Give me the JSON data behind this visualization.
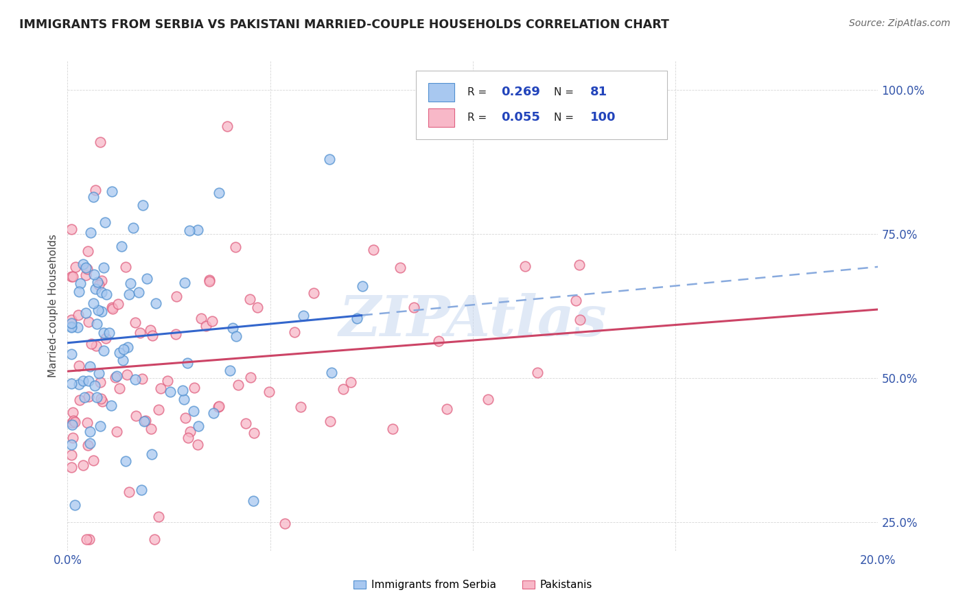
{
  "title": "IMMIGRANTS FROM SERBIA VS PAKISTANI MARRIED-COUPLE HOUSEHOLDS CORRELATION CHART",
  "source_text": "Source: ZipAtlas.com",
  "ylabel": "Married-couple Households",
  "xlabel_blue": "Immigrants from Serbia",
  "xlabel_pink": "Pakistanis",
  "xlim": [
    0.0,
    0.2
  ],
  "ylim": [
    0.2,
    1.05
  ],
  "R_blue": 0.269,
  "N_blue": 81,
  "R_pink": 0.055,
  "N_pink": 100,
  "color_blue_fill": "#A8C8F0",
  "color_blue_edge": "#5090D0",
  "color_pink_fill": "#F8B8C8",
  "color_pink_edge": "#E06080",
  "trend_blue_color": "#3366CC",
  "trend_pink_color": "#CC4466",
  "trend_dashed_color": "#88AADE",
  "watermark_text": "ZIPAtlas",
  "watermark_color": "#C8D8F0",
  "legend_text_color": "#222222",
  "legend_val_color": "#2244BB",
  "tick_color": "#3355AA",
  "ylabel_color": "#444444",
  "title_color": "#222222",
  "source_color": "#666666",
  "grid_color": "#CCCCCC"
}
